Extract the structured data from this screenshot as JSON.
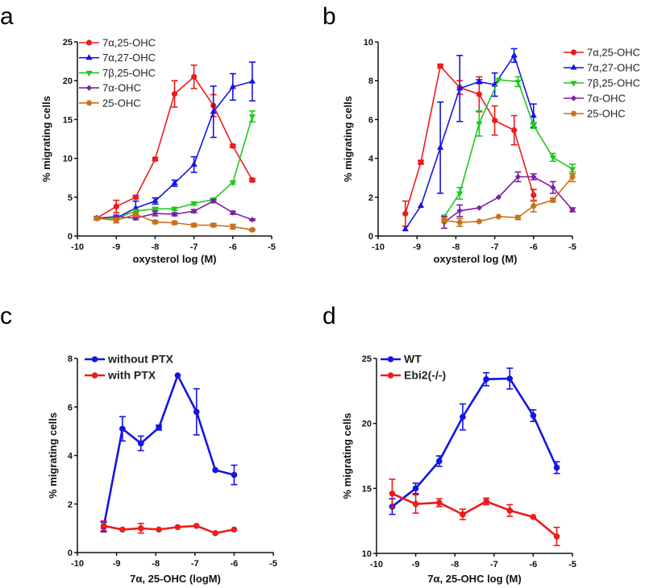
{
  "colors": {
    "red": "#ee1b1b",
    "blue": "#1414e6",
    "green": "#1ec81e",
    "purple": "#7d1fa5",
    "orange": "#c8711c"
  },
  "chart_data": [
    {
      "panel_label": "a",
      "type": "line",
      "xlabel": "oxysterol log (M)",
      "ylabel": "% migrating cells",
      "xlim": [
        -10,
        -5
      ],
      "ylim": [
        0,
        25
      ],
      "xticks": [
        "-10",
        "-9",
        "-8",
        "-7",
        "-6",
        "-5"
      ],
      "yticks": [
        "0",
        "5",
        "10",
        "15",
        "20",
        "25"
      ],
      "legend_position": "top-left",
      "series": [
        {
          "name": "7α,25-OHC",
          "color": "red",
          "marker": "circle",
          "x": [
            -9.5,
            -9,
            -8.5,
            -8,
            -7.5,
            -7,
            -6.5,
            -6,
            -5.5
          ],
          "y": [
            2.3,
            3.8,
            5.0,
            9.9,
            18.3,
            20.5,
            16.8,
            11.6,
            7.2
          ],
          "err": [
            0.2,
            0.8,
            0.2,
            0.2,
            1.7,
            1.5,
            1.4,
            0.2,
            0.2
          ]
        },
        {
          "name": "7α,27-OHC",
          "color": "blue",
          "marker": "triangle-up",
          "x": [
            -9.5,
            -9,
            -8.5,
            -8,
            -7.5,
            -7,
            -6.5,
            -6,
            -5.5
          ],
          "y": [
            2.3,
            2.3,
            3.6,
            4.5,
            6.8,
            9.2,
            16.0,
            19.2,
            19.9
          ],
          "err": [
            0.2,
            0.2,
            0.9,
            0.4,
            0.4,
            1.0,
            3.3,
            1.7,
            2.5
          ]
        },
        {
          "name": "7β,25-OHC",
          "color": "green",
          "marker": "triangle-down",
          "x": [
            -9.5,
            -9,
            -8.5,
            -8,
            -7.5,
            -7,
            -6.5,
            -6,
            -5.5
          ],
          "y": [
            2.3,
            2.3,
            3.2,
            3.5,
            3.5,
            4.2,
            4.7,
            6.9,
            15.4
          ],
          "err": [
            0.2,
            0.2,
            0.2,
            0.2,
            0.2,
            0.2,
            0.2,
            0.2,
            0.7
          ]
        },
        {
          "name": "7α-OHC",
          "color": "purple",
          "marker": "diamond",
          "x": [
            -9.5,
            -9,
            -8.5,
            -8,
            -7.5,
            -7,
            -6.5,
            -6,
            -5.5
          ],
          "y": [
            2.3,
            2.5,
            2.3,
            2.9,
            2.8,
            3.2,
            4.5,
            3.0,
            2.1
          ],
          "err": [
            0.2,
            0.2,
            0.2,
            0.3,
            0.2,
            0.2,
            0.2,
            0.2,
            0.1
          ]
        },
        {
          "name": "25-OHC",
          "color": "orange",
          "marker": "star",
          "x": [
            -9.5,
            -9,
            -8.5,
            -8,
            -7.5,
            -7,
            -6.5,
            -6,
            -5.5
          ],
          "y": [
            2.3,
            2.0,
            2.8,
            1.8,
            1.7,
            1.4,
            1.4,
            1.2,
            0.8
          ],
          "err": [
            0.2,
            0.3,
            0.3,
            0.2,
            0.2,
            0.2,
            0.2,
            0.3,
            0.1
          ]
        }
      ]
    },
    {
      "panel_label": "b",
      "type": "line",
      "xlabel": "oxysterol log (M)",
      "ylabel": "% migrating cells",
      "xlim": [
        -10,
        -5
      ],
      "ylim": [
        0,
        10
      ],
      "xticks": [
        "-10",
        "-9",
        "-8",
        "-7",
        "-6",
        "-5"
      ],
      "yticks": [
        "0",
        "2",
        "4",
        "6",
        "8",
        "10"
      ],
      "legend_position": "right",
      "series": [
        {
          "name": "7α,25-OHC",
          "color": "red",
          "marker": "circle",
          "x": [
            -9.3,
            -8.9,
            -8.4,
            -7.9,
            -7.4,
            -7.0,
            -6.5,
            -6.0
          ],
          "y": [
            1.15,
            3.8,
            8.75,
            7.65,
            7.3,
            5.95,
            5.45,
            2.1
          ],
          "err": [
            0.65,
            0.1,
            0.1,
            0.35,
            0.9,
            0.75,
            0.75,
            0.3
          ]
        },
        {
          "name": "7α,27-OHC",
          "color": "blue",
          "marker": "triangle-up",
          "x": [
            -9.3,
            -8.9,
            -8.4,
            -7.9,
            -7.4,
            -7.0,
            -6.5,
            -6.0
          ],
          "y": [
            0.35,
            1.55,
            4.55,
            7.6,
            7.95,
            7.8,
            9.3,
            6.2
          ],
          "err": [
            0.05,
            0.05,
            2.35,
            1.7,
            0.1,
            0.6,
            0.35,
            0.6
          ]
        },
        {
          "name": "7β,25-OHC",
          "color": "green",
          "marker": "triangle-down",
          "x": [
            -8.3,
            -7.9,
            -7.4,
            -6.9,
            -6.4,
            -6.0,
            -5.5,
            -5.0
          ],
          "y": [
            1.0,
            2.2,
            5.8,
            8.05,
            7.95,
            5.7,
            4.05,
            3.45
          ],
          "err": [
            0.05,
            0.3,
            0.65,
            0.05,
            0.25,
            0.15,
            0.2,
            0.25
          ]
        },
        {
          "name": "7α-OHC",
          "color": "purple",
          "marker": "diamond",
          "x": [
            -8.3,
            -7.9,
            -7.4,
            -6.9,
            -6.4,
            -6.0,
            -5.5,
            -5.0
          ],
          "y": [
            0.7,
            1.3,
            1.45,
            2.0,
            3.05,
            3.05,
            2.5,
            1.35
          ],
          "err": [
            0.3,
            0.3,
            0.05,
            0.05,
            0.25,
            0.15,
            0.3,
            0.1
          ]
        },
        {
          "name": "25-OHC",
          "color": "orange",
          "marker": "star",
          "x": [
            -8.3,
            -7.9,
            -7.4,
            -6.9,
            -6.4,
            -6.0,
            -5.5,
            -5.0
          ],
          "y": [
            0.8,
            0.7,
            0.75,
            1.0,
            0.95,
            1.55,
            1.85,
            3.05
          ],
          "err": [
            0.1,
            0.2,
            0.05,
            0.05,
            0.1,
            0.3,
            0.1,
            0.25
          ]
        }
      ]
    },
    {
      "panel_label": "c",
      "type": "line",
      "xlabel": "7α, 25-OHC (logM)",
      "ylabel": "% migrating cells",
      "xlim": [
        -10,
        -5
      ],
      "ylim": [
        0,
        8
      ],
      "xticks": [
        "-10",
        "-9",
        "-8",
        "-7",
        "-6",
        "-5"
      ],
      "yticks": [
        "0",
        "2",
        "4",
        "6",
        "8"
      ],
      "legend_position": "top-left",
      "series": [
        {
          "name": "without PTX",
          "color": "blue",
          "marker": "circle",
          "x": [
            -9.33,
            -8.85,
            -8.38,
            -7.92,
            -7.44,
            -6.96,
            -6.48,
            -6.0
          ],
          "y": [
            1.05,
            5.1,
            4.5,
            5.15,
            7.3,
            5.8,
            3.4,
            3.2
          ],
          "err": [
            0.2,
            0.5,
            0.3,
            0.1,
            0.05,
            0.95,
            0.05,
            0.4
          ]
        },
        {
          "name": "with PTX",
          "color": "red",
          "marker": "circle",
          "x": [
            -9.33,
            -8.85,
            -8.38,
            -7.92,
            -7.44,
            -6.96,
            -6.48,
            -6.0
          ],
          "y": [
            1.1,
            0.95,
            1.0,
            0.95,
            1.05,
            1.1,
            0.8,
            0.95
          ],
          "err": [
            0.2,
            0.05,
            0.2,
            0.05,
            0.05,
            0.05,
            0.05,
            0.05
          ]
        }
      ]
    },
    {
      "panel_label": "d",
      "type": "line",
      "xlabel": "7α, 25-OHC log (M)",
      "ylabel": "% migrating cells",
      "xlim": [
        -10,
        -5
      ],
      "ylim": [
        10,
        25
      ],
      "xticks": [
        "-10",
        "-9",
        "-8",
        "-7",
        "-6",
        "-5"
      ],
      "yticks": [
        "10",
        "15",
        "20",
        "25"
      ],
      "legend_position": "top-left",
      "series": [
        {
          "name": "WT",
          "color": "blue",
          "marker": "circle",
          "x": [
            -9.6,
            -9.0,
            -8.4,
            -7.8,
            -7.2,
            -6.6,
            -6.0,
            -5.4
          ],
          "y": [
            13.6,
            15.0,
            17.1,
            20.5,
            23.4,
            23.45,
            20.6,
            16.6
          ],
          "err": [
            0.6,
            0.4,
            0.4,
            1.0,
            0.5,
            0.8,
            0.45,
            0.45
          ]
        },
        {
          "name": "Ebi2(-/-)",
          "color": "red",
          "marker": "circle",
          "x": [
            -9.6,
            -9.0,
            -8.4,
            -7.8,
            -7.2,
            -6.6,
            -6.0,
            -5.4
          ],
          "y": [
            14.6,
            13.8,
            13.9,
            13.0,
            14.0,
            13.3,
            12.8,
            11.3
          ],
          "err": [
            1.1,
            0.7,
            0.3,
            0.4,
            0.25,
            0.45,
            0.05,
            0.7
          ]
        }
      ]
    }
  ]
}
